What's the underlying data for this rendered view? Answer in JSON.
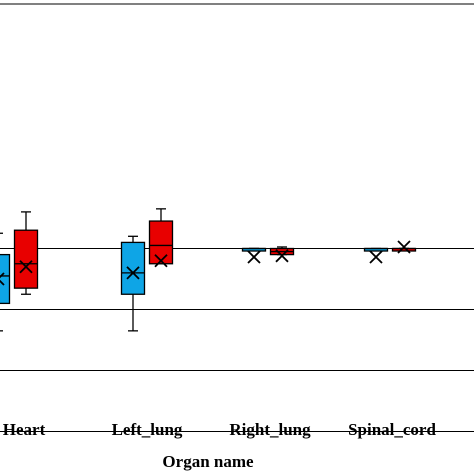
{
  "chart_data": {
    "type": "box",
    "xlabel": "Organ name",
    "ylabel": "",
    "categories": [
      "Heart",
      "Left_lung",
      "Right_lung",
      "Spinal_cord"
    ],
    "ylim": [
      0,
      1.0
    ],
    "gridlines": [
      0.3,
      0.5,
      0.7,
      0.9
    ],
    "grid": true,
    "legend": "none",
    "series": [
      {
        "color": "#0ea5e6",
        "boxes": [
          {
            "category": "Heart",
            "min": 0.63,
            "q1": 0.72,
            "median": 0.81,
            "q3": 0.88,
            "max": 0.95,
            "mean": 0.8
          },
          {
            "category": "Left_lung",
            "min": 0.63,
            "q1": 0.75,
            "median": 0.82,
            "q3": 0.92,
            "max": 0.94,
            "mean": 0.82
          },
          {
            "category": "Right_lung",
            "min": 0.9,
            "q1": 0.9,
            "median": 0.9,
            "q3": 0.9,
            "max": 0.9,
            "mean": 0.872
          },
          {
            "category": "Spinal_cord",
            "min": 0.895,
            "q1": 0.895,
            "median": 0.9,
            "q3": 0.9,
            "max": 0.9,
            "mean": 0.872
          }
        ]
      },
      {
        "color": "#e80000",
        "boxes": [
          {
            "category": "Heart",
            "min": 0.75,
            "q1": 0.77,
            "median": 0.85,
            "q3": 0.96,
            "max": 1.02,
            "mean": 0.84
          },
          {
            "category": "Left_lung",
            "min": 0.85,
            "q1": 0.85,
            "median": 0.91,
            "q3": 0.99,
            "max": 1.03,
            "mean": 0.86
          },
          {
            "category": "Right_lung",
            "min": 0.88,
            "q1": 0.88,
            "median": 0.89,
            "q3": 0.9,
            "max": 0.905,
            "mean": 0.876
          },
          {
            "category": "Spinal_cord",
            "min": 0.9,
            "q1": 0.9,
            "median": 0.9,
            "q3": 0.9,
            "max": 0.9,
            "mean": 0.905
          }
        ]
      }
    ]
  }
}
